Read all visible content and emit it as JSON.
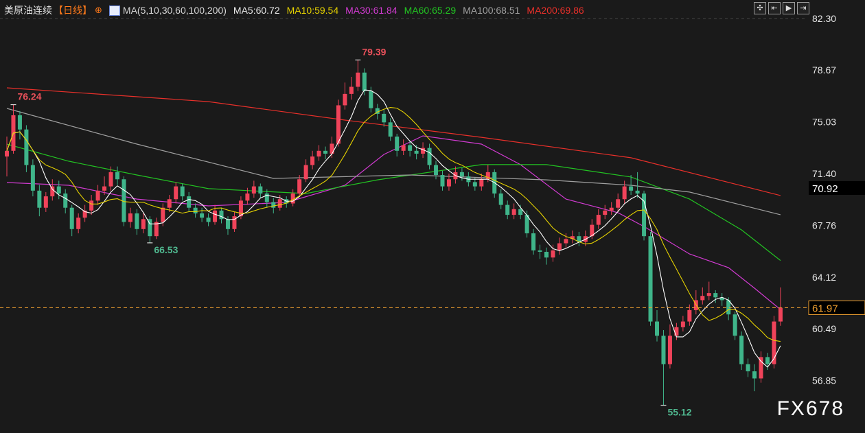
{
  "header": {
    "symbol": "美原油连续",
    "period": "【日线】",
    "target_icon": "⊕",
    "ma_params": "MA(5,10,30,60,100,200)",
    "ma5": "MA5:60.72",
    "ma10": "MA10:59.54",
    "ma30": "MA30:61.84",
    "ma60": "MA60:65.29",
    "ma100": "MA100:68.51",
    "ma200": "MA200:69.86"
  },
  "toolbar": [
    {
      "icon": "crosshair-icon",
      "glyph": "✣"
    },
    {
      "icon": "step-back-icon",
      "glyph": "⇤"
    },
    {
      "icon": "play-icon",
      "glyph": "▶"
    },
    {
      "icon": "exit-icon",
      "glyph": "⇥"
    }
  ],
  "watermark": "FX678",
  "colors": {
    "up": "#f0435a",
    "down": "#3fb58a",
    "ma5": "#ffffff",
    "ma10": "#e6d200",
    "ma30": "#d23bd2",
    "ma60": "#22c322",
    "ma100": "#a0a0a0",
    "ma200": "#e8302a",
    "last": "#f0a030"
  },
  "chart_data": {
    "type": "candlestick",
    "ylim": [
      54.5,
      82.3
    ],
    "y_ticks": [
      "82.30",
      "78.67",
      "75.03",
      "71.40",
      "67.76",
      "64.12",
      "60.49",
      "56.85"
    ],
    "last_price": "61.97",
    "marked_price": "70.92",
    "annotations": [
      {
        "text": "76.24",
        "index": 1,
        "value": 76.24,
        "kind": "high"
      },
      {
        "text": "79.39",
        "index": 54,
        "value": 79.39,
        "kind": "high"
      },
      {
        "text": "66.53",
        "index": 22,
        "value": 66.53,
        "kind": "low"
      },
      {
        "text": "55.12",
        "index": 101,
        "value": 55.12,
        "kind": "low"
      }
    ],
    "candles": [
      [
        72.6,
        74.0,
        71.2,
        73.0
      ],
      [
        73.0,
        76.24,
        72.8,
        75.5
      ],
      [
        75.5,
        75.8,
        73.8,
        74.5
      ],
      [
        74.5,
        74.8,
        71.5,
        72.0
      ],
      [
        72.0,
        72.4,
        69.8,
        70.2
      ],
      [
        70.2,
        70.6,
        68.4,
        69.0
      ],
      [
        69.0,
        70.1,
        68.7,
        69.8
      ],
      [
        69.8,
        71.0,
        69.5,
        70.5
      ],
      [
        70.5,
        70.9,
        69.6,
        70.0
      ],
      [
        70.0,
        70.3,
        68.6,
        69.0
      ],
      [
        69.0,
        69.2,
        67.0,
        67.5
      ],
      [
        67.5,
        68.6,
        67.2,
        68.3
      ],
      [
        68.3,
        69.2,
        68.0,
        68.8
      ],
      [
        68.8,
        69.9,
        68.5,
        69.5
      ],
      [
        69.5,
        70.6,
        69.2,
        70.2
      ],
      [
        70.2,
        71.2,
        69.9,
        70.5
      ],
      [
        70.5,
        71.9,
        70.2,
        71.5
      ],
      [
        71.5,
        71.9,
        70.6,
        71.0
      ],
      [
        71.0,
        71.2,
        67.7,
        68.0
      ],
      [
        68.0,
        69.0,
        67.6,
        68.6
      ],
      [
        68.6,
        68.9,
        67.1,
        67.5
      ],
      [
        67.5,
        68.6,
        67.2,
        68.2
      ],
      [
        68.2,
        68.4,
        66.53,
        67.0
      ],
      [
        67.0,
        68.3,
        66.8,
        68.0
      ],
      [
        68.0,
        69.3,
        67.7,
        69.0
      ],
      [
        69.0,
        69.9,
        68.7,
        69.6
      ],
      [
        69.6,
        70.8,
        69.3,
        70.5
      ],
      [
        70.5,
        70.7,
        69.5,
        69.8
      ],
      [
        69.8,
        70.1,
        68.7,
        69.0
      ],
      [
        69.0,
        69.3,
        68.3,
        68.6
      ],
      [
        68.6,
        69.0,
        68.0,
        68.3
      ],
      [
        68.3,
        68.6,
        67.7,
        68.0
      ],
      [
        68.0,
        69.2,
        67.8,
        68.8
      ],
      [
        68.8,
        69.0,
        67.9,
        68.2
      ],
      [
        68.2,
        68.4,
        67.1,
        67.5
      ],
      [
        67.5,
        68.7,
        67.3,
        68.4
      ],
      [
        68.4,
        69.8,
        68.2,
        69.5
      ],
      [
        69.5,
        70.4,
        69.2,
        70.0
      ],
      [
        70.0,
        70.9,
        69.7,
        70.5
      ],
      [
        70.5,
        70.7,
        69.7,
        70.0
      ],
      [
        70.0,
        70.3,
        69.0,
        69.4
      ],
      [
        69.4,
        69.7,
        68.6,
        69.0
      ],
      [
        69.0,
        69.9,
        68.8,
        69.6
      ],
      [
        69.6,
        69.8,
        69.0,
        69.3
      ],
      [
        69.3,
        70.3,
        69.1,
        70.0
      ],
      [
        70.0,
        71.3,
        69.8,
        71.0
      ],
      [
        71.0,
        72.4,
        70.8,
        72.0
      ],
      [
        72.0,
        73.0,
        71.7,
        72.6
      ],
      [
        72.6,
        73.4,
        72.3,
        73.0
      ],
      [
        73.0,
        73.3,
        72.4,
        72.8
      ],
      [
        72.8,
        74.0,
        72.5,
        73.5
      ],
      [
        73.5,
        76.6,
        73.3,
        76.2
      ],
      [
        76.2,
        77.8,
        75.9,
        77.0
      ],
      [
        77.0,
        78.2,
        76.6,
        77.5
      ],
      [
        77.5,
        79.39,
        77.2,
        78.5
      ],
      [
        78.5,
        78.8,
        76.9,
        77.2
      ],
      [
        77.2,
        77.5,
        75.7,
        76.0
      ],
      [
        76.0,
        76.3,
        75.2,
        75.6
      ],
      [
        75.6,
        75.9,
        74.7,
        75.0
      ],
      [
        75.0,
        75.3,
        73.7,
        74.0
      ],
      [
        74.0,
        74.2,
        72.6,
        73.0
      ],
      [
        73.0,
        73.8,
        72.7,
        73.4
      ],
      [
        73.4,
        73.7,
        72.6,
        73.0
      ],
      [
        73.0,
        73.4,
        72.4,
        72.8
      ],
      [
        72.8,
        73.6,
        72.5,
        73.2
      ],
      [
        73.2,
        73.5,
        71.7,
        72.0
      ],
      [
        72.0,
        72.3,
        71.0,
        71.3
      ],
      [
        71.3,
        71.6,
        70.2,
        70.5
      ],
      [
        70.5,
        71.4,
        70.2,
        71.0
      ],
      [
        71.0,
        71.9,
        70.7,
        71.5
      ],
      [
        71.5,
        71.8,
        70.9,
        71.2
      ],
      [
        71.2,
        71.5,
        70.5,
        70.8
      ],
      [
        70.8,
        71.1,
        70.2,
        70.5
      ],
      [
        70.5,
        71.4,
        70.2,
        71.0
      ],
      [
        71.0,
        72.0,
        70.8,
        71.5
      ],
      [
        71.5,
        71.7,
        69.7,
        70.0
      ],
      [
        70.0,
        70.3,
        68.9,
        69.2
      ],
      [
        69.2,
        69.5,
        68.2,
        68.5
      ],
      [
        68.5,
        69.3,
        68.2,
        68.9
      ],
      [
        68.9,
        69.2,
        68.2,
        68.5
      ],
      [
        68.5,
        68.8,
        66.9,
        67.2
      ],
      [
        67.2,
        67.5,
        65.7,
        66.0
      ],
      [
        66.0,
        66.4,
        65.4,
        65.9
      ],
      [
        65.9,
        66.2,
        65.0,
        65.5
      ],
      [
        65.5,
        66.4,
        65.2,
        66.0
      ],
      [
        66.0,
        66.9,
        65.7,
        66.5
      ],
      [
        66.5,
        67.2,
        66.2,
        66.8
      ],
      [
        66.8,
        67.4,
        66.5,
        67.0
      ],
      [
        67.0,
        67.3,
        66.3,
        66.6
      ],
      [
        66.6,
        67.4,
        66.3,
        67.0
      ],
      [
        67.0,
        68.2,
        66.8,
        67.8
      ],
      [
        67.8,
        68.9,
        67.5,
        68.5
      ],
      [
        68.5,
        69.2,
        68.2,
        68.8
      ],
      [
        68.8,
        69.4,
        68.5,
        69.0
      ],
      [
        69.0,
        70.0,
        68.7,
        69.6
      ],
      [
        69.6,
        70.9,
        69.3,
        70.5
      ],
      [
        70.5,
        71.3,
        69.9,
        70.2
      ],
      [
        70.2,
        71.5,
        69.7,
        70.0
      ],
      [
        70.0,
        70.2,
        66.7,
        67.0
      ],
      [
        67.0,
        67.3,
        60.7,
        61.0
      ],
      [
        61.0,
        61.8,
        59.6,
        60.0
      ],
      [
        60.0,
        60.4,
        55.12,
        58.0
      ],
      [
        58.0,
        60.8,
        57.7,
        60.0
      ],
      [
        60.0,
        60.9,
        59.7,
        60.6
      ],
      [
        60.6,
        61.4,
        60.3,
        61.0
      ],
      [
        61.0,
        62.2,
        60.7,
        61.8
      ],
      [
        61.8,
        63.2,
        61.5,
        62.5
      ],
      [
        62.5,
        63.4,
        62.2,
        62.8
      ],
      [
        62.8,
        63.8,
        62.5,
        63.0
      ],
      [
        63.0,
        63.2,
        62.3,
        62.7
      ],
      [
        62.7,
        63.0,
        62.1,
        62.5
      ],
      [
        62.5,
        62.7,
        61.1,
        61.5
      ],
      [
        61.5,
        61.7,
        59.7,
        60.0
      ],
      [
        60.0,
        60.3,
        57.6,
        58.0
      ],
      [
        58.0,
        58.4,
        57.1,
        57.5
      ],
      [
        57.5,
        58.0,
        56.1,
        57.0
      ],
      [
        57.0,
        58.9,
        56.7,
        58.5
      ],
      [
        58.5,
        58.8,
        57.6,
        58.0
      ],
      [
        58.0,
        61.4,
        57.7,
        61.0
      ],
      [
        61.0,
        63.4,
        60.7,
        61.97
      ]
    ],
    "ma_series": [
      {
        "name": "MA30",
        "points": [
          [
            0,
            70.77
          ],
          [
            9.5,
            70.58
          ],
          [
            20,
            69.61
          ],
          [
            31,
            69.13
          ],
          [
            43,
            69.37
          ],
          [
            52,
            70.58
          ],
          [
            58,
            72.75
          ],
          [
            64,
            74.05
          ],
          [
            73,
            73.47
          ],
          [
            79,
            72.03
          ],
          [
            86,
            69.61
          ],
          [
            94,
            68.65
          ],
          [
            98,
            67.68
          ],
          [
            105,
            65.75
          ],
          [
            111,
            64.79
          ],
          [
            115,
            63.34
          ],
          [
            119,
            61.84
          ]
        ]
      },
      {
        "name": "MA60",
        "points": [
          [
            0,
            73.47
          ],
          [
            9.5,
            72.27
          ],
          [
            20,
            71.3
          ],
          [
            31,
            70.34
          ],
          [
            46,
            70.0
          ],
          [
            57,
            70.96
          ],
          [
            73,
            72.03
          ],
          [
            83,
            72.03
          ],
          [
            96,
            71.16
          ],
          [
            105,
            69.61
          ],
          [
            113,
            67.44
          ],
          [
            119,
            65.29
          ]
        ]
      },
      {
        "name": "MA100",
        "points": [
          [
            0,
            75.98
          ],
          [
            20,
            73.47
          ],
          [
            41,
            71.06
          ],
          [
            62,
            71.3
          ],
          [
            83,
            70.96
          ],
          [
            96,
            70.58
          ],
          [
            105,
            70.1
          ],
          [
            119,
            68.51
          ]
        ]
      },
      {
        "name": "MA200",
        "points": [
          [
            0,
            77.43
          ],
          [
            31,
            76.46
          ],
          [
            52,
            75.16
          ],
          [
            73,
            73.95
          ],
          [
            96,
            72.51
          ],
          [
            119,
            69.86
          ]
        ]
      }
    ]
  }
}
